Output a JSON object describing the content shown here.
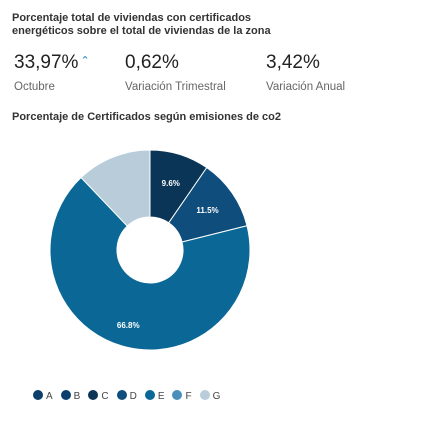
{
  "header": {
    "title": "Porcentaje total de viviendas con certificados energéticos sobre el total de viviendas de la zona"
  },
  "kpis": [
    {
      "value": "33,97%",
      "trend": "⌃",
      "label": "Octubre"
    },
    {
      "value": "0,62%",
      "label": "Variación Trimestral"
    },
    {
      "value": "3,42%",
      "label": "Variación Anual"
    }
  ],
  "chart_section": {
    "title": "Porcentaje de Certificados según emisiones de co2"
  },
  "chart_data": {
    "type": "pie",
    "donut": true,
    "categories": [
      "A",
      "B",
      "C",
      "D",
      "E",
      "F",
      "G"
    ],
    "values": [
      0,
      0,
      9.6,
      11.5,
      66.8,
      0,
      12.1
    ],
    "data_labels": [
      "",
      "",
      "9.6%",
      "11.5%",
      "66.8%",
      "",
      ""
    ],
    "colors": [
      "#0b3e6b",
      "#0b3e6b",
      "#0b3557",
      "#0f4d7c",
      "#0b6896",
      "#4a8fbb",
      "#b8cdd9"
    ],
    "legend_position": "bottom-left"
  }
}
